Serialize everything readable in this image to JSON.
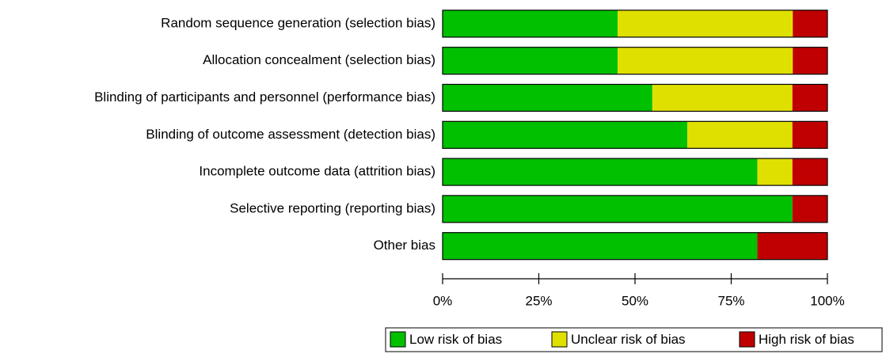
{
  "chart_data": {
    "type": "stacked-bar-horizontal",
    "categories": [
      "Random sequence generation (selection bias)",
      "Allocation concealment (selection bias)",
      "Blinding of participants and personnel (performance bias)",
      "Blinding of outcome assessment (detection bias)",
      "Incomplete outcome data (attrition bias)",
      "Selective reporting (reporting bias)",
      "Other bias"
    ],
    "series": [
      {
        "name": "Low risk of bias",
        "color": "#00c000",
        "values": [
          45.5,
          45.5,
          54.5,
          63.6,
          81.8,
          90.9,
          81.8
        ]
      },
      {
        "name": "Unclear risk of bias",
        "color": "#e0e000",
        "values": [
          45.5,
          45.5,
          36.4,
          27.3,
          9.1,
          0,
          0
        ]
      },
      {
        "name": "High risk of bias",
        "color": "#c00000",
        "values": [
          9.1,
          9.1,
          9.1,
          9.1,
          9.1,
          9.1,
          18.2
        ]
      }
    ],
    "xlim": [
      0,
      100
    ],
    "xticks": [
      {
        "value": 0,
        "label": "0%"
      },
      {
        "value": 25,
        "label": "25%"
      },
      {
        "value": 50,
        "label": "50%"
      },
      {
        "value": 75,
        "label": "75%"
      },
      {
        "value": 100,
        "label": "100%"
      }
    ],
    "legend": "bottom-right"
  }
}
